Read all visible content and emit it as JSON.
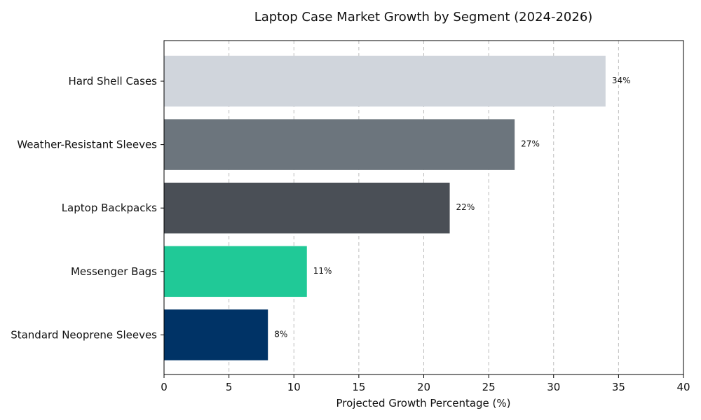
{
  "chart_data": {
    "type": "bar",
    "orientation": "horizontal",
    "title": "Laptop Case Market Growth by Segment (2024-2026)",
    "xlabel": "Projected Growth Percentage (%)",
    "ylabel": "",
    "categories": [
      "Hard Shell Cases",
      "Weather-Resistant Sleeves",
      "Laptop Backpacks",
      "Messenger Bags",
      "Standard Neoprene Sleeves"
    ],
    "values": [
      34,
      27,
      22,
      11,
      8
    ],
    "data_labels": [
      "34%",
      "27%",
      "22%",
      "11%",
      "8%"
    ],
    "colors": [
      "#d0d5dc",
      "#6c757d",
      "#4a4f56",
      "#20c997",
      "#003366"
    ],
    "xlim": [
      0,
      40
    ],
    "xticks": [
      0,
      5,
      10,
      15,
      20,
      25,
      30,
      35,
      40
    ],
    "grid": "vertical dashed",
    "legend": "none"
  }
}
